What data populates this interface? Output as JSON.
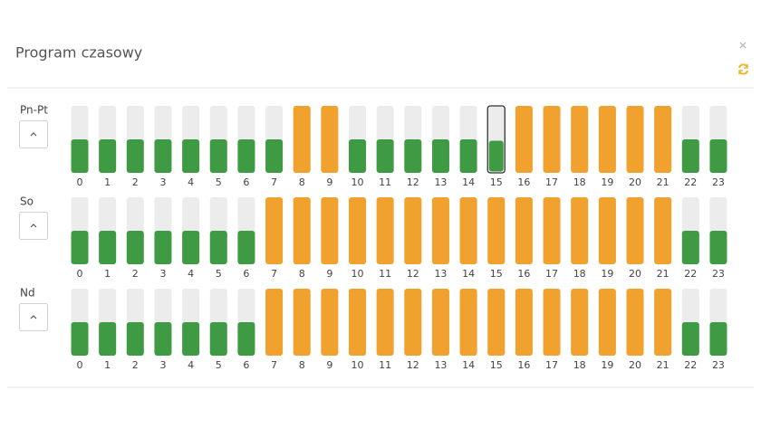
{
  "header": {
    "title": "Program czasowy"
  },
  "max_level": 2,
  "level_colors": {
    "1": "#3f9b43",
    "2": "#f0a12e"
  },
  "selected": {
    "row": 0,
    "hour": 15
  },
  "rows": [
    {
      "label": "Pn-Pt",
      "hours": [
        0,
        1,
        2,
        3,
        4,
        5,
        6,
        7,
        8,
        9,
        10,
        11,
        12,
        13,
        14,
        15,
        16,
        17,
        18,
        19,
        20,
        21,
        22,
        23
      ],
      "levels": [
        1,
        1,
        1,
        1,
        1,
        1,
        1,
        1,
        2,
        2,
        1,
        1,
        1,
        1,
        1,
        1,
        2,
        2,
        2,
        2,
        2,
        2,
        1,
        1
      ]
    },
    {
      "label": "So",
      "hours": [
        0,
        1,
        2,
        3,
        4,
        5,
        6,
        7,
        8,
        9,
        10,
        11,
        12,
        13,
        14,
        15,
        16,
        17,
        18,
        19,
        20,
        21,
        22,
        23
      ],
      "levels": [
        1,
        1,
        1,
        1,
        1,
        1,
        1,
        2,
        2,
        2,
        2,
        2,
        2,
        2,
        2,
        2,
        2,
        2,
        2,
        2,
        2,
        2,
        1,
        1
      ]
    },
    {
      "label": "Nd",
      "hours": [
        0,
        1,
        2,
        3,
        4,
        5,
        6,
        7,
        8,
        9,
        10,
        11,
        12,
        13,
        14,
        15,
        16,
        17,
        18,
        19,
        20,
        21,
        22,
        23
      ],
      "levels": [
        1,
        1,
        1,
        1,
        1,
        1,
        1,
        2,
        2,
        2,
        2,
        2,
        2,
        2,
        2,
        2,
        2,
        2,
        2,
        2,
        2,
        2,
        1,
        1
      ]
    }
  ]
}
